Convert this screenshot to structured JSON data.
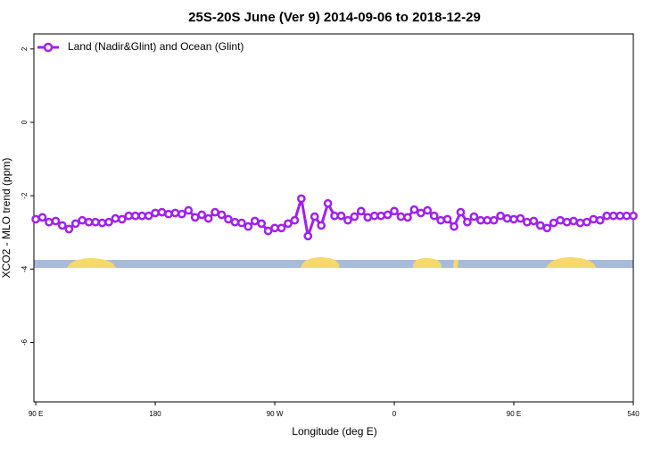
{
  "chart_data": {
    "type": "line",
    "title": "25S-20S June (Ver 9)   2014-09-06 to 2018-12-29",
    "x_label": "Longitude (deg E)",
    "y_label": "XCO2 - MLO trend (ppm)",
    "x": [
      90,
      95,
      100,
      105,
      110,
      115,
      120,
      125,
      130,
      135,
      140,
      145,
      150,
      155,
      160,
      165,
      170,
      175,
      180,
      185,
      190,
      195,
      200,
      205,
      210,
      215,
      220,
      225,
      230,
      235,
      240,
      245,
      250,
      255,
      260,
      265,
      270,
      275,
      280,
      285,
      290,
      295,
      300,
      305,
      310,
      315,
      320,
      325,
      330,
      335,
      340,
      345,
      350,
      355,
      360,
      365,
      370,
      375,
      380,
      385,
      390,
      395,
      400,
      405,
      410,
      415,
      420,
      425,
      430,
      435,
      440,
      445,
      450,
      455,
      460,
      465,
      470,
      475,
      480,
      485,
      490,
      495,
      500,
      505,
      510,
      515,
      520,
      525,
      530,
      535,
      540
    ],
    "series": [
      {
        "name": "Land (Nadir&Glint) and Ocean (Glint)",
        "color": "#a020f0",
        "values": [
          -2.64,
          -2.59,
          -2.72,
          -2.69,
          -2.81,
          -2.91,
          -2.76,
          -2.67,
          -2.72,
          -2.72,
          -2.74,
          -2.72,
          -2.62,
          -2.64,
          -2.55,
          -2.55,
          -2.55,
          -2.55,
          -2.47,
          -2.45,
          -2.5,
          -2.47,
          -2.5,
          -2.4,
          -2.59,
          -2.52,
          -2.62,
          -2.45,
          -2.52,
          -2.64,
          -2.72,
          -2.74,
          -2.84,
          -2.69,
          -2.76,
          -2.96,
          -2.88,
          -2.88,
          -2.76,
          -2.67,
          -2.08,
          -3.1,
          -2.57,
          -2.81,
          -2.21,
          -2.55,
          -2.55,
          -2.67,
          -2.57,
          -2.42,
          -2.59,
          -2.55,
          -2.55,
          -2.52,
          -2.42,
          -2.57,
          -2.59,
          -2.38,
          -2.47,
          -2.4,
          -2.55,
          -2.67,
          -2.64,
          -2.84,
          -2.45,
          -2.72,
          -2.57,
          -2.67,
          -2.67,
          -2.67,
          -2.55,
          -2.62,
          -2.64,
          -2.62,
          -2.72,
          -2.69,
          -2.81,
          -2.88,
          -2.74,
          -2.67,
          -2.72,
          -2.69,
          -2.74,
          -2.72,
          -2.64,
          -2.67,
          -2.55,
          -2.55,
          -2.55,
          -2.55,
          -2.55
        ]
      }
    ],
    "xlim": [
      88.6,
      540
    ],
    "xticks": [
      {
        "value": 90,
        "label": "90 E"
      },
      180,
      {
        "value": 270,
        "label": "90 W"
      },
      {
        "value": 360,
        "label": "0"
      },
      {
        "value": 450,
        "label": "90 E"
      },
      540
    ],
    "ylim": [
      -7.62,
      2.41
    ],
    "yticks": [
      -6,
      -4,
      -2,
      0,
      2
    ],
    "legend": "top-left"
  }
}
